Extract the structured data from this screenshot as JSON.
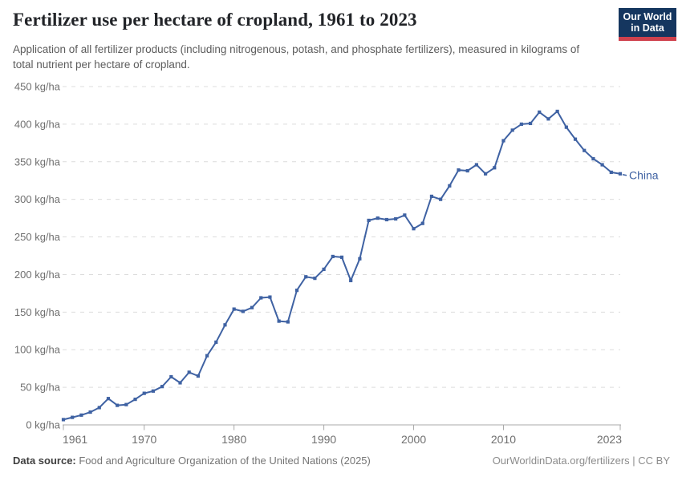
{
  "header": {
    "title": "Fertilizer use per hectare of cropland, 1961 to 2023",
    "subtitle": "Application of all fertilizer products (including nitrogenous, potash, and phosphate fertilizers), measured in kilograms of total nutrient per hectare of cropland.",
    "logo": {
      "line1": "Our World",
      "line2": "in Data",
      "bg_color": "#15365f",
      "accent_color": "#cf414d"
    }
  },
  "footer": {
    "source_label": "Data source:",
    "source_text": " Food and Agriculture Organization of the United Nations (2025)",
    "right_text": "OurWorldinData.org/fertilizers | CC BY"
  },
  "chart_data": {
    "type": "line",
    "title": "Fertilizer use per hectare of cropland, 1961 to 2023",
    "xlabel": "",
    "ylabel": "kg/ha",
    "xlim": [
      1961,
      2023
    ],
    "ylim": [
      0,
      450
    ],
    "x_ticks": [
      1961,
      1970,
      1980,
      1990,
      2000,
      2010,
      2023
    ],
    "y_ticks": [
      0,
      50,
      100,
      150,
      200,
      250,
      300,
      350,
      400,
      450
    ],
    "y_tick_suffix": " kg/ha",
    "grid": "horizontal-dashed",
    "legend": "end-of-line-label",
    "marker": "square",
    "x": [
      1961,
      1962,
      1963,
      1964,
      1965,
      1966,
      1967,
      1968,
      1969,
      1970,
      1971,
      1972,
      1973,
      1974,
      1975,
      1976,
      1977,
      1978,
      1979,
      1980,
      1981,
      1982,
      1983,
      1984,
      1985,
      1986,
      1987,
      1988,
      1989,
      1990,
      1991,
      1992,
      1993,
      1994,
      1995,
      1996,
      1997,
      1998,
      1999,
      2000,
      2001,
      2002,
      2003,
      2004,
      2005,
      2006,
      2007,
      2008,
      2009,
      2010,
      2011,
      2012,
      2013,
      2014,
      2015,
      2016,
      2017,
      2018,
      2019,
      2020,
      2021,
      2022,
      2023
    ],
    "series": [
      {
        "name": "China",
        "color": "#3f62a3",
        "values": [
          7,
          10,
          13,
          17,
          23,
          35,
          26,
          27,
          34,
          42,
          45,
          51,
          64,
          56,
          70,
          65,
          92,
          110,
          133,
          154,
          151,
          156,
          169,
          170,
          138,
          137,
          179,
          197,
          195,
          207,
          224,
          223,
          192,
          221,
          272,
          275,
          273,
          274,
          279,
          261,
          268,
          304,
          300,
          318,
          339,
          338,
          346,
          334,
          342,
          378,
          392,
          400,
          401,
          416,
          407,
          417,
          396,
          380,
          365,
          354,
          346,
          336,
          334
        ]
      }
    ],
    "axis_color": "#a8a8a8",
    "grid_color": "#dcdcdc",
    "tick_label_color": "#6f6f6f"
  }
}
